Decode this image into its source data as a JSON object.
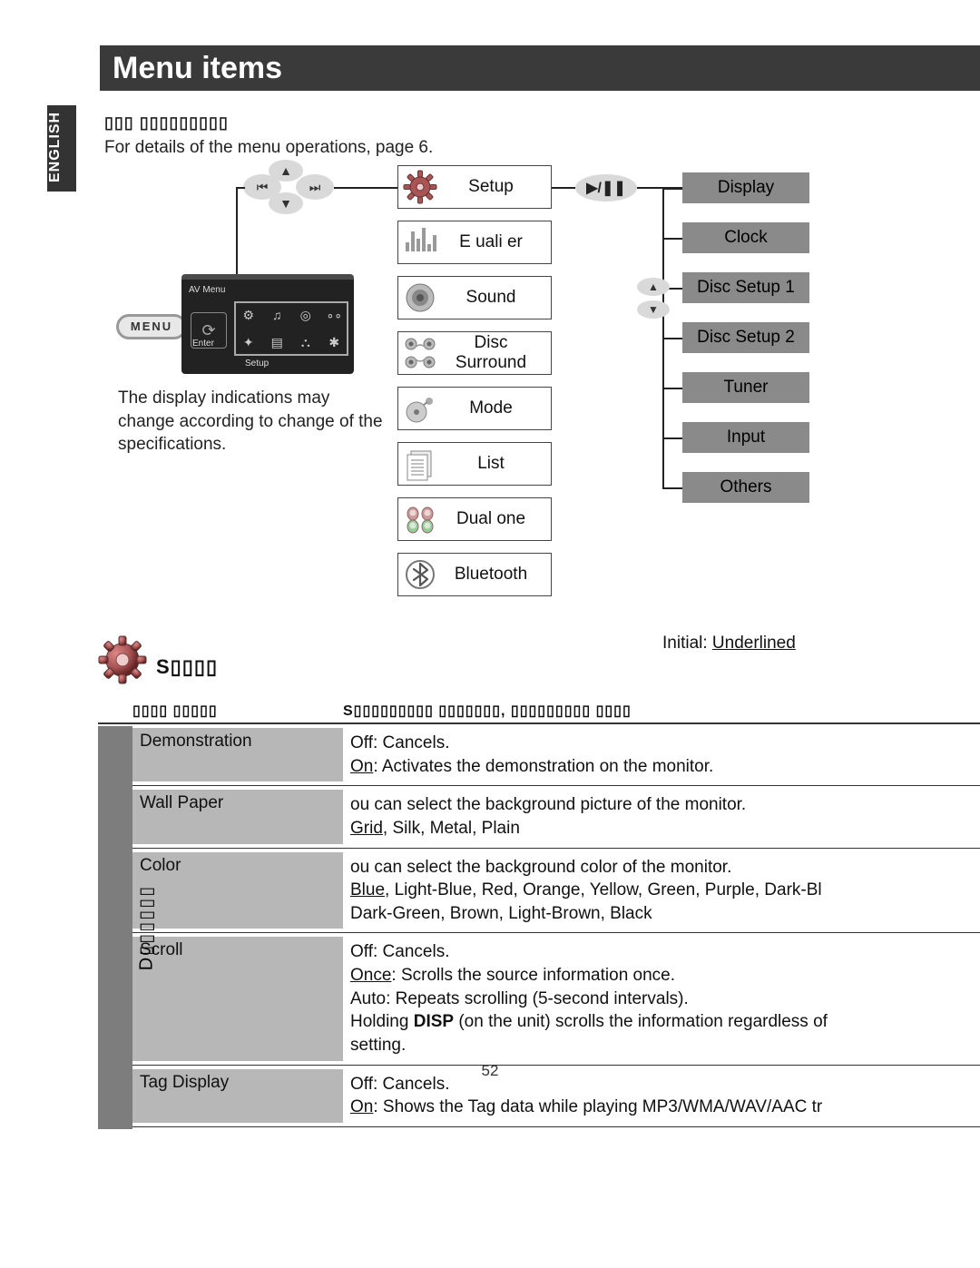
{
  "header": "Menu items",
  "language_tab": "ENGLISH",
  "masked_heading": "▯▯▯ ▯▯▯▯▯▯▯▯▯",
  "intro_line": "For details of the menu operations,    page 6.",
  "note_text": "The display indications may change according to change of the specifications.",
  "menu_button": "MENU",
  "device": {
    "top_left": "AV Menu",
    "enter": "Enter",
    "bottom": "Setup"
  },
  "center_items": [
    {
      "label": "Setup",
      "icon": "gear"
    },
    {
      "label": "E  uali  er",
      "icon": "equalizer"
    },
    {
      "label": "Sound",
      "icon": "speaker"
    },
    {
      "label": "Disc Surround",
      "icon": "surround"
    },
    {
      "label": "Mode",
      "icon": "mode"
    },
    {
      "label": "List",
      "icon": "list"
    },
    {
      "label": "Dual  one",
      "icon": "dualzone"
    },
    {
      "label": "Bluetooth",
      "icon": "bluetooth"
    }
  ],
  "play_glyph": "▶/❚❚",
  "right_items": [
    "Display",
    "Clock",
    "Disc Setup 1",
    "Disc Setup 2",
    "Tuner",
    "Input",
    "Others"
  ],
  "initial_text_a": "Initial:",
  "initial_text_b": "Underlined",
  "setup_heading": "S▯▯▯▯",
  "table": {
    "side_label": "D▯▯▯▯▯▯",
    "head_c1": "▯▯▯▯ ▯▯▯▯▯",
    "head_c2": "S▯▯▯▯▯▯▯▯▯ ▯▯▯▯▯▯▯,  ▯▯▯▯▯▯▯▯▯ ▯▯▯▯",
    "rows": [
      {
        "name": "Demonstration",
        "body": "Off: Cancels.\n<u>On</u>: Activates the demonstration on the monitor."
      },
      {
        "name": "Wall Paper",
        "body": " ou can select the background picture of the monitor.\n<u>Grid</u>, Silk, Metal, Plain"
      },
      {
        "name": "Color",
        "body": " ou can select the background color of the monitor.\n<u>Blue</u>, Light-Blue, Red, Orange, Yellow, Green, Purple, Dark-Bl\nDark-Green, Brown, Light-Brown, Black"
      },
      {
        "name": "Scroll",
        "body": "Off: Cancels.\n<u>Once</u>: Scrolls the source information once.\nAuto: Repeats scrolling (5-second intervals).\n  Holding <b>DISP</b> (on the unit) scrolls the information regardless of\n  setting."
      },
      {
        "name": "Tag Display",
        "body": "Off: Cancels.\n<u>On</u>: Shows the Tag data while playing MP3/WMA/WAV/AAC tr"
      }
    ]
  },
  "page_number": "52",
  "colors": {
    "header_bg": "#3a3a3a",
    "tab_bg": "#333333",
    "grey_box": "#8a8a8a",
    "cell_grey": "#b7b7b7",
    "side_grey": "#7d7d7d",
    "oval": "#d9d9d9"
  },
  "icon_glyphs": {
    "prev": "⏮",
    "next": "⏭",
    "up": "▲",
    "down": "▼"
  }
}
